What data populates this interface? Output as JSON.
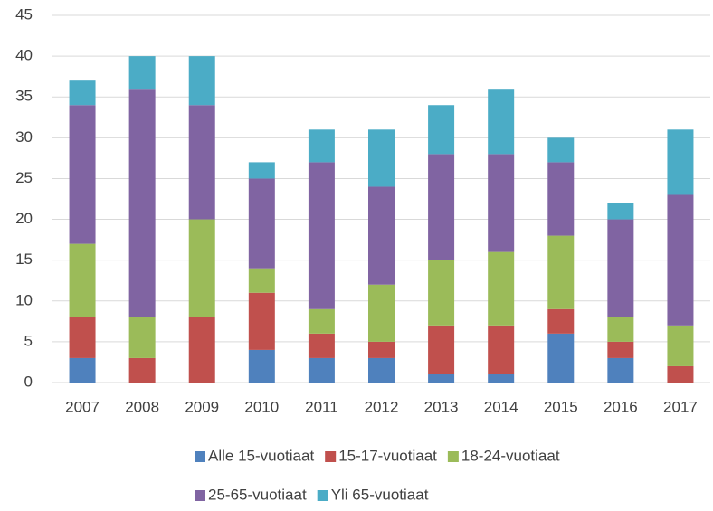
{
  "chart_data": {
    "type": "stacked_bar",
    "categories": [
      "2007",
      "2008",
      "2009",
      "2010",
      "2011",
      "2012",
      "2013",
      "2014",
      "2015",
      "2016",
      "2017"
    ],
    "series": [
      {
        "name": "Alle 15-vuotiaat",
        "color": "#4f81bd",
        "values": [
          3,
          0,
          0,
          4,
          3,
          3,
          1,
          1,
          6,
          3,
          0
        ]
      },
      {
        "name": "15-17-vuotiaat",
        "color": "#c0504d",
        "values": [
          5,
          3,
          8,
          7,
          3,
          2,
          6,
          6,
          3,
          2,
          2
        ]
      },
      {
        "name": "18-24-vuotiaat",
        "color": "#9bbb59",
        "values": [
          9,
          5,
          12,
          3,
          3,
          7,
          8,
          9,
          9,
          3,
          5
        ]
      },
      {
        "name": "25-65-vuotiaat",
        "color": "#8064a2",
        "values": [
          17,
          28,
          14,
          11,
          18,
          12,
          13,
          12,
          9,
          12,
          16
        ]
      },
      {
        "name": "Yli 65-vuotiaat",
        "color": "#4bacc6",
        "values": [
          3,
          4,
          6,
          2,
          4,
          7,
          6,
          8,
          3,
          2,
          8
        ]
      }
    ],
    "ylim": [
      0,
      45
    ],
    "yticks": [
      0,
      5,
      10,
      15,
      20,
      25,
      30,
      35,
      40,
      45
    ],
    "grid": true,
    "legend": "bottom"
  }
}
